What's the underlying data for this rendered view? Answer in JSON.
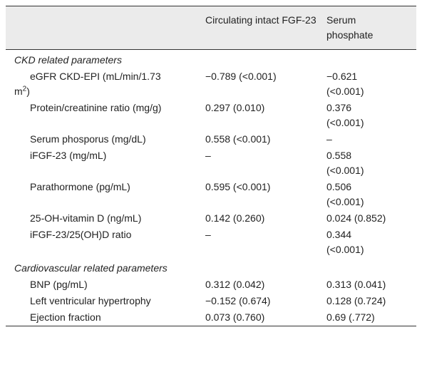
{
  "table": {
    "header": [
      "",
      "Circulating intact FGF-23",
      "Serum phosphate"
    ],
    "sections": [
      {
        "title": "CKD related parameters",
        "rows": [
          {
            "label": "eGFR CKD-EPI (mL/min/1.73 m",
            "label_sup": "2",
            "label_end": ")",
            "cells": [
              "−0.789 (<0.001)",
              "−0.621 (<0.001)"
            ]
          },
          {
            "label": "Protein/creatinine ratio (mg/g)",
            "cells": [
              "0.297 (0.010)",
              "0.376 (<0.001)"
            ]
          },
          {
            "label": "Serum phosporus (mg/dL)",
            "cells": [
              "0.558 (<0.001)",
              "–"
            ]
          },
          {
            "label": "iFGF-23 (mg/mL)",
            "cells": [
              "–",
              "0.558 (<0.001)"
            ]
          },
          {
            "label": "Parathormone (pg/mL)",
            "cells": [
              "0.595 (<0.001)",
              "0.506 (<0.001)"
            ]
          },
          {
            "label": "25-OH-vitamin D (ng/mL)",
            "cells": [
              "0.142 (0.260)",
              "0.024 (0.852)"
            ]
          },
          {
            "label": "iFGF-23/25(OH)D ratio",
            "cells": [
              "–",
              "0.344 (<0.001)"
            ]
          }
        ]
      },
      {
        "title": "Cardiovascular related parameters",
        "rows": [
          {
            "label": "BNP (pg/mL)",
            "cells": [
              "0.312 (0.042)",
              "0.313 (0.041)"
            ]
          },
          {
            "label": "Left ventricular hypertrophy",
            "cells": [
              "−0.152 (0.674)",
              "0.128 (0.724)"
            ]
          },
          {
            "label": "Ejection fraction",
            "cells": [
              "0.073 (0.760)",
              "0.69 (.772)"
            ]
          }
        ]
      }
    ]
  }
}
